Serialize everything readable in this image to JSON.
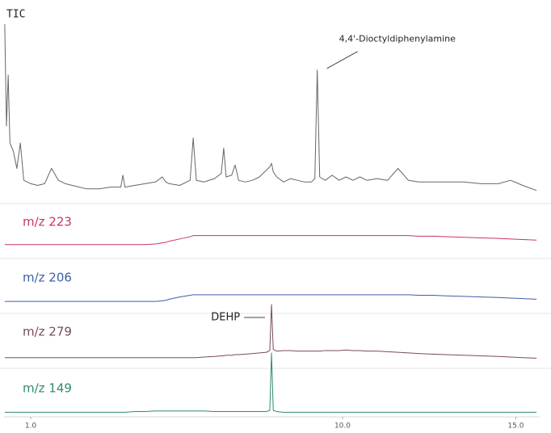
{
  "chart_data": {
    "type": "line",
    "x": [
      0.25,
      0.3,
      0.35,
      0.4,
      0.5,
      0.6,
      0.7,
      0.8,
      1.0,
      1.2,
      1.4,
      1.6,
      1.8,
      2.0,
      2.2,
      2.4,
      2.6,
      2.8,
      3.0,
      3.3,
      3.6,
      3.66,
      3.72,
      4.0,
      4.3,
      4.6,
      4.8,
      4.9,
      5.0,
      5.3,
      5.6,
      5.69,
      5.78,
      6.0,
      6.3,
      6.5,
      6.57,
      6.64,
      6.8,
      6.9,
      7.0,
      7.2,
      7.4,
      7.6,
      7.8,
      7.9,
      7.95,
      8.0,
      8.1,
      8.3,
      8.5,
      8.7,
      8.9,
      9.1,
      9.2,
      9.27,
      9.34,
      9.5,
      9.7,
      9.9,
      10.1,
      10.3,
      10.5,
      10.7,
      11.0,
      11.3,
      11.6,
      11.9,
      12.2,
      12.6,
      13.0,
      13.5,
      14.0,
      14.5,
      14.85,
      15.2,
      15.6
    ],
    "xlim": [
      0.23,
      15.69
    ],
    "xticks": [
      {
        "value": 1,
        "label": "1.0"
      },
      {
        "value": 10,
        "label": "10.0"
      },
      {
        "value": 15,
        "label": "15.0"
      }
    ],
    "ylim": [
      0,
      100
    ],
    "series": [
      {
        "name": "TIC",
        "color": "#666666",
        "annotation": {
          "text": "4,4'-Dioctyldiphenylamine",
          "x": 9.27
        },
        "values": [
          100,
          40,
          70,
          30,
          25,
          15,
          30,
          8,
          6,
          5,
          6,
          15,
          8,
          6,
          5,
          4,
          3,
          3,
          3,
          4,
          4,
          11,
          4,
          5,
          6,
          7,
          10,
          7,
          6,
          5,
          8,
          33,
          8,
          7,
          9,
          12,
          27,
          10,
          11,
          17,
          8,
          7,
          8,
          10,
          14,
          16,
          18,
          13,
          10,
          7,
          9,
          8,
          7,
          7,
          9,
          73,
          10,
          8,
          11,
          8,
          10,
          8,
          10,
          8,
          9,
          8,
          15,
          8,
          7,
          7,
          7,
          7,
          6,
          6,
          8,
          5,
          2
        ]
      },
      {
        "name": "m/z 223",
        "color": "#c8326b",
        "values": [
          12,
          12,
          12,
          12,
          12,
          12,
          12,
          12,
          12,
          12,
          12,
          12,
          12,
          12,
          12,
          12,
          12,
          12,
          12,
          12,
          12,
          12,
          12,
          12,
          12,
          13,
          15,
          16,
          18,
          22,
          26,
          28,
          28,
          28,
          28,
          28,
          28,
          28,
          28,
          28,
          28,
          28,
          28,
          28,
          28,
          28,
          28,
          28,
          28,
          28,
          28,
          28,
          28,
          28,
          28,
          28,
          28,
          28,
          28,
          28,
          28,
          28,
          28,
          28,
          28,
          28,
          28,
          28,
          27,
          27,
          26,
          25,
          24,
          23,
          22,
          21,
          20
        ]
      },
      {
        "name": "m/z 206",
        "color": "#3b5ea8",
        "values": [
          10,
          10,
          10,
          10,
          10,
          10,
          10,
          10,
          10,
          10,
          10,
          10,
          10,
          10,
          10,
          10,
          10,
          10,
          10,
          10,
          10,
          10,
          10,
          10,
          10,
          10,
          11,
          12,
          14,
          18,
          21,
          22,
          22,
          22,
          22,
          22,
          22,
          22,
          22,
          22,
          22,
          22,
          22,
          22,
          22,
          22,
          22,
          22,
          22,
          22,
          22,
          22,
          22,
          22,
          22,
          22,
          22,
          22,
          22,
          22,
          22,
          22,
          22,
          22,
          22,
          22,
          22,
          22,
          21,
          21,
          20,
          19,
          18,
          17,
          16,
          15,
          14
        ]
      },
      {
        "name": "m/z 279",
        "color": "#7a4a5e",
        "annotation": {
          "text": "DEHP",
          "x": 7.95
        },
        "values": [
          10,
          10,
          10,
          10,
          10,
          10,
          10,
          10,
          10,
          10,
          10,
          10,
          10,
          10,
          10,
          10,
          10,
          10,
          10,
          10,
          10,
          10,
          10,
          10,
          10,
          10,
          10,
          10,
          10,
          10,
          10,
          10,
          10,
          11,
          12,
          13,
          13,
          14,
          14,
          15,
          15,
          16,
          17,
          18,
          19,
          22,
          100,
          24,
          21,
          22,
          22,
          21,
          21,
          21,
          21,
          21,
          21,
          22,
          22,
          22,
          23,
          22,
          22,
          21,
          21,
          20,
          19,
          18,
          17,
          16,
          15,
          14,
          13,
          12,
          11,
          10,
          9
        ]
      },
      {
        "name": "m/z 149",
        "color": "#2e8b6e",
        "values": [
          6,
          6,
          6,
          6,
          6,
          6,
          6,
          6,
          6,
          6,
          6,
          6,
          6,
          6,
          6,
          6,
          6,
          6,
          6,
          6,
          6,
          6,
          6,
          7,
          7,
          8,
          8,
          8,
          8,
          8,
          8,
          8,
          8,
          8,
          7,
          7,
          7,
          7,
          7,
          7,
          7,
          7,
          7,
          7,
          7,
          9,
          100,
          9,
          7,
          6,
          6,
          6,
          6,
          6,
          6,
          6,
          6,
          6,
          6,
          6,
          6,
          6,
          6,
          6,
          6,
          6,
          6,
          6,
          6,
          6,
          6,
          6,
          6,
          6,
          6,
          6,
          6
        ]
      }
    ]
  }
}
